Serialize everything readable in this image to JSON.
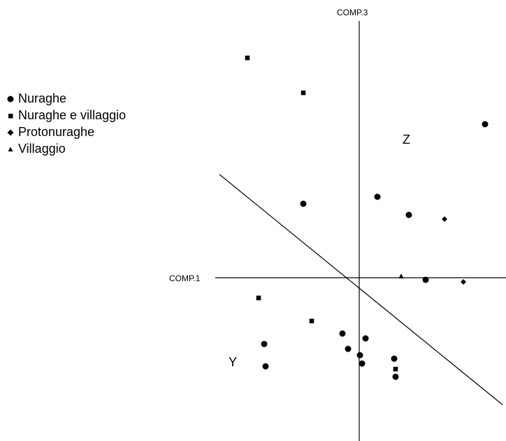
{
  "chart_data": {
    "type": "scatter",
    "xlabel": "COMP.1",
    "ylabel": "COMP.3",
    "region_labels": [
      "Z",
      "Y"
    ],
    "legend": [
      "Nuraghe",
      "Nuraghe e villaggio",
      "Protonuraghe",
      "Villaggio"
    ],
    "legend_placement": "left",
    "grid": false,
    "xlim": [
      -2.7,
      2.1
    ],
    "ylim": [
      -2.3,
      3.3
    ],
    "series": [
      {
        "name": "Nuraghe",
        "marker": "circle",
        "points": [
          [
            1.8,
            2.2
          ],
          [
            -0.8,
            1.06
          ],
          [
            0.26,
            1.16
          ],
          [
            0.71,
            0.9
          ],
          [
            0.95,
            -0.03
          ],
          [
            -1.36,
            -0.95
          ],
          [
            -1.34,
            -1.27
          ],
          [
            -0.24,
            -0.8
          ],
          [
            0.09,
            -0.87
          ],
          [
            -0.16,
            -1.02
          ],
          [
            0.01,
            -1.11
          ],
          [
            0.04,
            -1.23
          ],
          [
            0.5,
            -1.16
          ],
          [
            0.52,
            -1.42
          ]
        ]
      },
      {
        "name": "Nuraghe e villaggio",
        "marker": "square",
        "points": [
          [
            -1.6,
            3.15
          ],
          [
            -0.8,
            2.65
          ],
          [
            -1.44,
            -0.29
          ],
          [
            -0.68,
            -0.62
          ],
          [
            0.52,
            -1.31
          ]
        ]
      },
      {
        "name": "Protonuraghe",
        "marker": "diamond",
        "points": [
          [
            1.22,
            0.84
          ],
          [
            1.49,
            -0.06
          ]
        ]
      },
      {
        "name": "Villaggio",
        "marker": "triangle",
        "points": [
          [
            0.6,
            0.02
          ]
        ]
      }
    ],
    "separator_line": {
      "from": [
        -2.0,
        1.48
      ],
      "to": [
        2.05,
        -1.82
      ]
    }
  }
}
